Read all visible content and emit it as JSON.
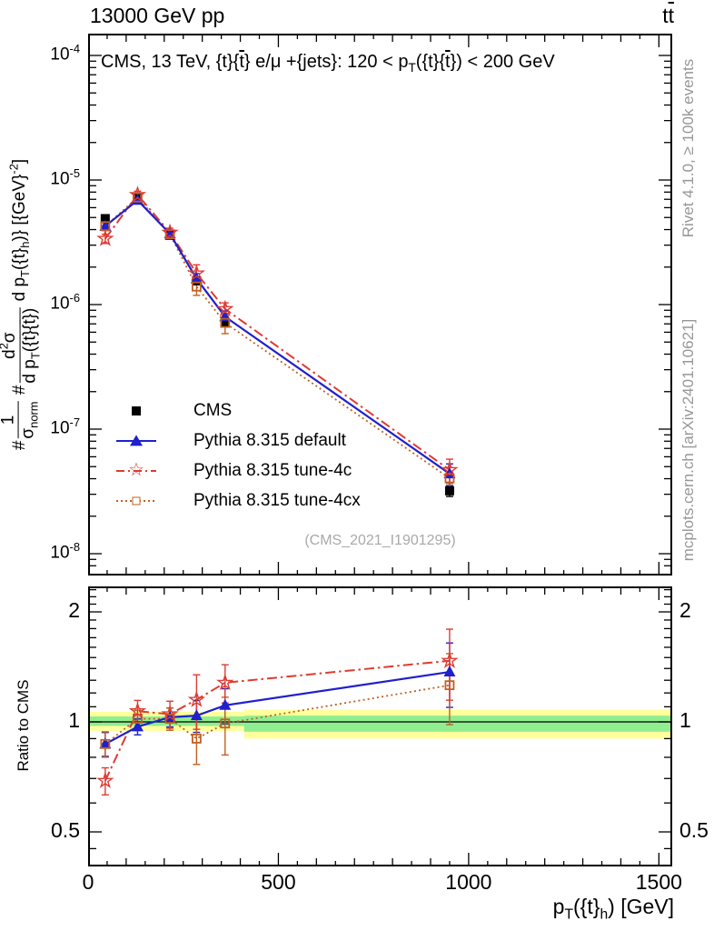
{
  "titles": {
    "top_left": "13000 GeV pp",
    "top_right": "tt̄"
  },
  "labels": {
    "top_right_segments": [
      {
        "text": "t"
      },
      {
        "text": "t",
        "bar": true
      }
    ],
    "panel_header_segments": [
      {
        "text": "CMS, 13 TeV, {t}{"
      },
      {
        "text": "t",
        "bar": true
      },
      {
        "text": "} e/μ +{jets}: 120 <  p"
      },
      {
        "sub": "T"
      },
      {
        "text": "({t}{"
      },
      {
        "text": "t",
        "bar": true
      },
      {
        "text": "}) < 200 GeV"
      }
    ],
    "y_axis_segments": [
      {
        "text": "#"
      },
      {
        "frac": {
          "num": [
            {
              "text": "1"
            }
          ],
          "den": [
            {
              "text": "σ"
            },
            {
              "sub": "norm"
            }
          ]
        }
      },
      {
        "text": " #"
      },
      {
        "frac": {
          "num": [
            {
              "text": "d"
            },
            {
              "sup": "2"
            },
            {
              "text": "σ"
            }
          ],
          "den": [
            {
              "text": "d p"
            },
            {
              "sub": "T"
            },
            {
              "text": "({t}{"
            },
            {
              "text": "t",
              "bar": true
            },
            {
              "text": "})"
            }
          ]
        }
      },
      {
        "text": " d p"
      },
      {
        "sub": "T"
      },
      {
        "text": "({t}"
      },
      {
        "sub": "h"
      },
      {
        "text": ")} [{GeV}"
      },
      {
        "sup": "-2"
      },
      {
        "text": "]"
      }
    ],
    "x_axis_segments": [
      {
        "text": "p"
      },
      {
        "sub": "T"
      },
      {
        "text": "({t}"
      },
      {
        "sub": "h"
      },
      {
        "text": ") [GeV]"
      }
    ]
  },
  "watermark": "(CMS_2021_I1901295)",
  "ratio_axis_label": "Ratio to CMS",
  "side_notes": {
    "rivet": "Rivet 4.1.0, ≥ 100k events",
    "mcplots": "mcplots.cern.ch [arXiv:2401.10621]"
  },
  "legend": {
    "items": [
      {
        "label": "CMS"
      },
      {
        "label": "Pythia 8.315 default"
      },
      {
        "label": "Pythia 8.315 tune-4c"
      },
      {
        "label": "Pythia 8.315 tune-4cx"
      }
    ]
  },
  "chart_data": {
    "type": "line",
    "title": "CMS, 13 TeV, {t}{t̄} e/μ +{jets}: 120 < pT({t}{t̄}) < 200 GeV",
    "xlabel": "pT({t}_h) [GeV]",
    "ylabel": "1/σ_norm · d²σ/(d pT({t}{t̄}) d pT({t}_h)) [GeV^-2]",
    "ratio_ylabel": "Ratio to CMS",
    "x_values": [
      45,
      130,
      215,
      285,
      360,
      950
    ],
    "xlim": [
      0,
      1535
    ],
    "xticks_major": [
      0,
      500,
      1000,
      1500
    ],
    "x_medium_step": 100,
    "x_minor_step": 50,
    "y_decades": [
      -4,
      -5,
      -6,
      -7,
      -8
    ],
    "ylim": [
      6.7e-09,
      0.00015
    ],
    "ratio_ylim": [
      0.4,
      2.35
    ],
    "ratio_ticks_major": [
      2,
      1,
      0.5
    ],
    "ratio_ticks_minor": [
      0.45,
      0.6,
      0.7,
      0.8,
      0.9,
      1.1,
      1.2,
      1.3,
      1.4,
      1.5,
      1.6,
      1.7,
      1.8,
      1.9,
      2.1,
      2.2,
      2.3
    ],
    "series": [
      {
        "id": "cms",
        "name": "CMS",
        "color": "#000000",
        "marker": "square-filled",
        "line": "none",
        "values": [
          4.9e-06,
          7.1e-06,
          3.6e-06,
          1.55e-06,
          7.2e-07,
          3.2e-08
        ],
        "yerr_frac": [
          0.05,
          0.03,
          0.035,
          0.05,
          0.07,
          0.1
        ]
      },
      {
        "id": "default",
        "name": "Pythia 8.315 default",
        "color": "#2020cc",
        "marker": "triangle-filled",
        "line": "solid",
        "ratio_to_cms": [
          0.87,
          0.97,
          1.03,
          1.04,
          1.11,
          1.37
        ],
        "yerr_frac": [
          0.075,
          0.05,
          0.06,
          0.1,
          0.11,
          0.2
        ]
      },
      {
        "id": "tune4c",
        "name": "Pythia 8.315 tune-4c",
        "color": "#dd3c32",
        "marker": "star-open",
        "line": "dashdot",
        "ratio_to_cms": [
          0.69,
          1.07,
          1.05,
          1.15,
          1.28,
          1.47
        ],
        "yerr_frac": [
          0.085,
          0.07,
          0.085,
          0.17,
          0.12,
          0.22
        ]
      },
      {
        "id": "tune4cx",
        "name": "Pythia 8.315 tune-4cx",
        "color": "#c06020",
        "marker": "square-open",
        "line": "dotted",
        "ratio_to_cms": [
          0.87,
          1.02,
          1.02,
          0.9,
          0.99,
          1.26
        ],
        "yerr_frac": [
          0.08,
          0.055,
          0.07,
          0.15,
          0.18,
          0.22
        ]
      }
    ],
    "ratio_reference": 1,
    "ratio_bands": [
      {
        "x0": 0,
        "x1": 410,
        "outer": [
          0.945,
          1.065
        ],
        "inner": [
          0.975,
          1.035
        ]
      },
      {
        "x0": 410,
        "x1": 1535,
        "outer": [
          0.9,
          1.08
        ],
        "inner": [
          0.94,
          1.04
        ]
      }
    ],
    "band_colors": {
      "outer": "#ffff9c",
      "inner": "#90ee90"
    },
    "legend_position": "middle-left",
    "grid": false
  }
}
